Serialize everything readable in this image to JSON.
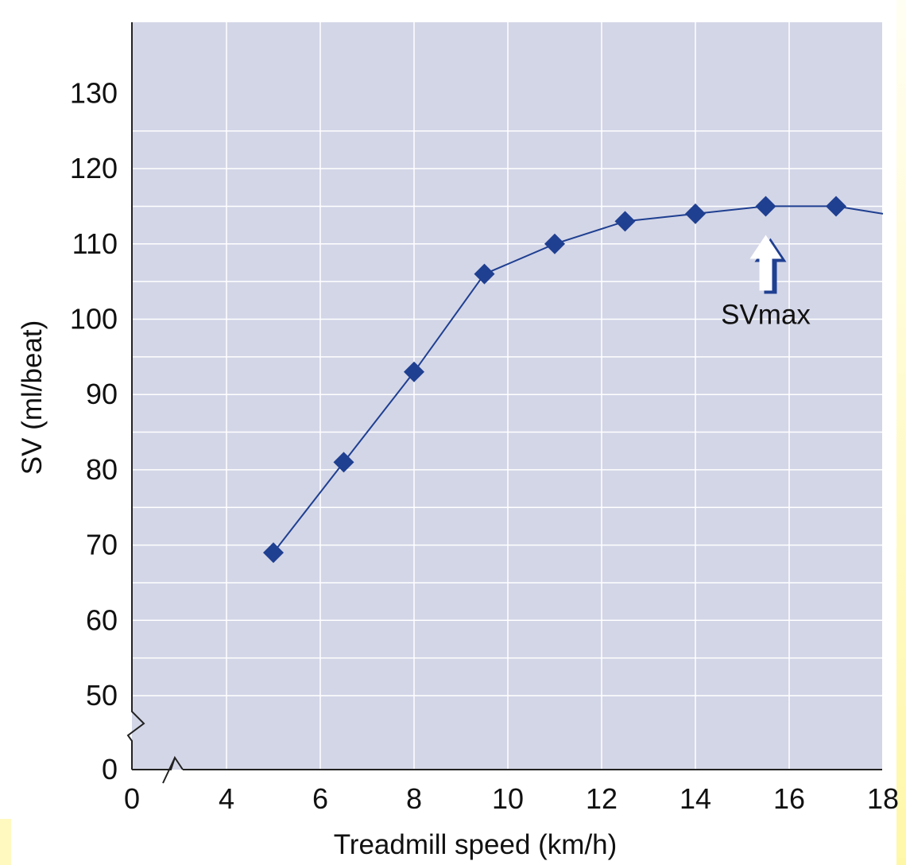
{
  "chart_data": {
    "type": "line",
    "xlabel": "Treadmill speed (km/h)",
    "ylabel": "SV (ml/beat)",
    "x_ticks": [
      0,
      4,
      6,
      8,
      10,
      12,
      14,
      16,
      18
    ],
    "y_ticks": [
      0,
      50,
      60,
      70,
      80,
      90,
      100,
      110,
      120,
      130
    ],
    "xlim": [
      0,
      18
    ],
    "ylim": [
      0,
      130
    ],
    "axis_breaks": [
      "x between 0 and 4",
      "y between 0 and 50"
    ],
    "grid": true,
    "series": [
      {
        "color": "#1f3f91",
        "marker": "diamond",
        "x": [
          5,
          6.5,
          8,
          9.5,
          11,
          12.5,
          14,
          15.5,
          17,
          18
        ],
        "y": [
          69,
          81,
          93,
          106,
          110,
          113,
          114,
          115,
          115,
          114
        ],
        "marker_count": 9
      }
    ],
    "annotations": [
      {
        "text": "SVmax",
        "x": 15.5,
        "y": 115,
        "arrow": "up-white"
      }
    ],
    "colors": {
      "plot_bg": "#d3d6e7",
      "grid": "#ffffff",
      "line": "#1f3f91"
    }
  }
}
